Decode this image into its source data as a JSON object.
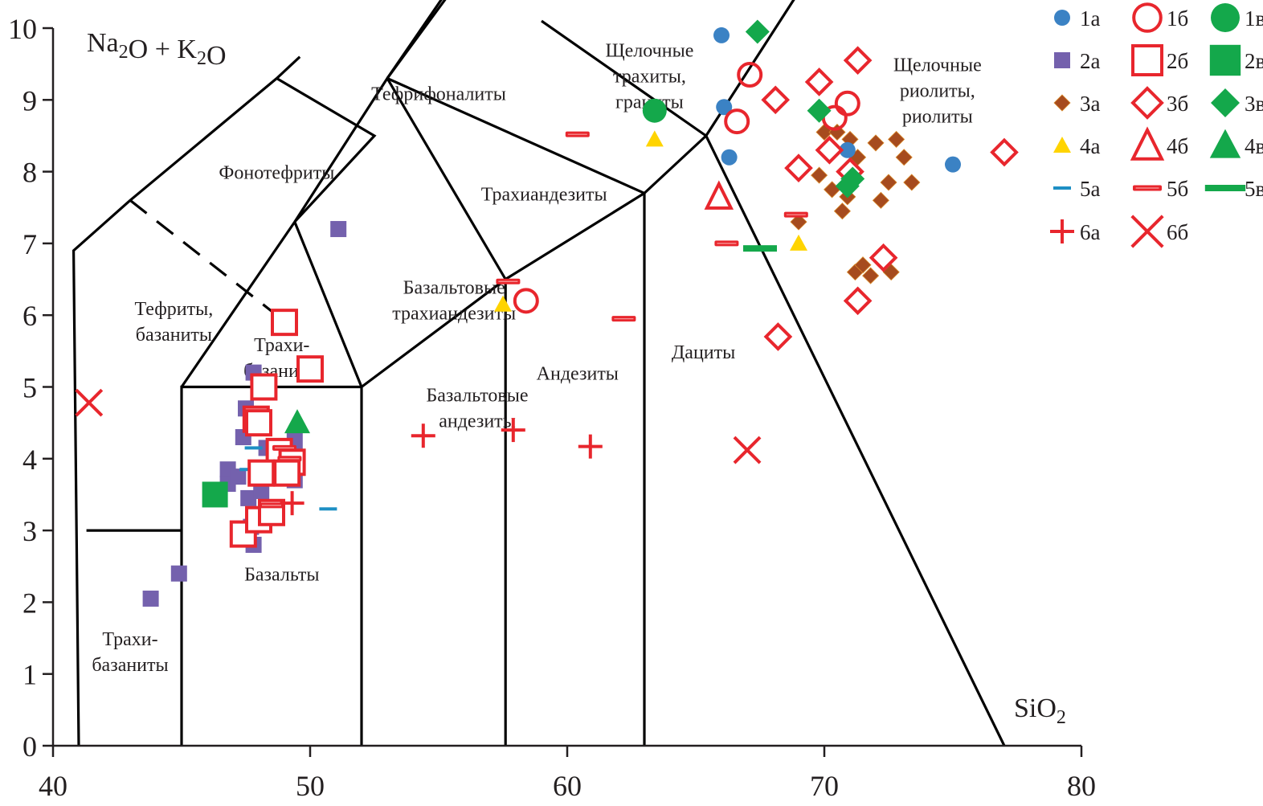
{
  "chart_data": {
    "type": "scatter",
    "title": "",
    "xlabel": "SiO2",
    "ylabel": "Na2O + K2O",
    "xlim": [
      40,
      80
    ],
    "ylim": [
      0,
      10
    ],
    "x_ticks": [
      "40",
      "50",
      "60",
      "70",
      "80"
    ],
    "y_ticks": [
      "0",
      "1",
      "2",
      "3",
      "4",
      "5",
      "6",
      "7",
      "8",
      "9",
      "10"
    ],
    "grid": false,
    "legend_position": "top-right",
    "field_labels": [
      {
        "text": [
          "Тефрифоналиты"
        ],
        "x": 55,
        "y": 9.0
      },
      {
        "text": [
          "Фонотефриты"
        ],
        "x": 48.7,
        "y": 7.9
      },
      {
        "text": [
          "Щелочные",
          "трахиты,",
          "граниты"
        ],
        "x": 63.2,
        "y": 9.6
      },
      {
        "text": [
          "Щелочные",
          "риолиты,",
          "риолиты"
        ],
        "x": 74.4,
        "y": 9.4
      },
      {
        "text": [
          "Трахиандезиты"
        ],
        "x": 59.1,
        "y": 7.6
      },
      {
        "text": [
          "Базальтовые",
          "трахиандезиты"
        ],
        "x": 55.6,
        "y": 6.3
      },
      {
        "text": [
          "Тефриты,",
          "базаниты"
        ],
        "x": 44.7,
        "y": 6.0
      },
      {
        "text": [
          "Трахи-",
          "базаниты"
        ],
        "x": 48.9,
        "y": 5.5
      },
      {
        "text": [
          "Базальтовые",
          "андезиты"
        ],
        "x": 56.5,
        "y": 4.8
      },
      {
        "text": [
          "Андезиты"
        ],
        "x": 60.4,
        "y": 5.1
      },
      {
        "text": [
          "Дациты"
        ],
        "x": 65.3,
        "y": 5.4
      },
      {
        "text": [
          "Базальты"
        ],
        "x": 48.9,
        "y": 2.3
      },
      {
        "text": [
          "Трахи-",
          "базаниты"
        ],
        "x": 43.0,
        "y": 1.4
      }
    ],
    "boundaries": {
      "solid": [
        [
          [
            41.0,
            0
          ],
          [
            40.8,
            6.9
          ],
          [
            43.0,
            7.6
          ],
          [
            48.7,
            9.3
          ],
          [
            49.6,
            9.6
          ]
        ],
        [
          [
            45,
            0
          ],
          [
            45,
            5.0
          ],
          [
            52,
            5.0
          ],
          [
            52,
            0
          ]
        ],
        [
          [
            45,
            5.0
          ],
          [
            49.4,
            7.3
          ],
          [
            53,
            9.3
          ],
          [
            57.6,
            11.7
          ]
        ],
        [
          [
            52,
            5.0
          ],
          [
            57.6,
            6.5
          ],
          [
            63,
            7.7
          ],
          [
            65.4,
            8.5
          ],
          [
            69,
            10.5
          ]
        ],
        [
          [
            57.6,
            0
          ],
          [
            57.6,
            6.5
          ]
        ],
        [
          [
            63,
            0
          ],
          [
            63,
            7.7
          ]
        ],
        [
          [
            49.4,
            7.3
          ],
          [
            52.5,
            8.5
          ],
          [
            48.7,
            9.3
          ]
        ],
        [
          [
            52,
            5.0
          ],
          [
            49.4,
            7.3
          ]
        ],
        [
          [
            57.6,
            6.5
          ],
          [
            53,
            9.3
          ]
        ],
        [
          [
            63,
            7.7
          ],
          [
            53,
            9.3
          ]
        ],
        [
          [
            65.4,
            8.5
          ],
          [
            59,
            10.1
          ]
        ],
        [
          [
            53,
            9.3
          ],
          [
            61.4,
            13.4
          ]
        ],
        [
          [
            65.4,
            8.5
          ],
          [
            77,
            0
          ]
        ],
        [
          [
            41.3,
            3.0
          ],
          [
            45,
            3.0
          ]
        ]
      ],
      "dashed": [
        [
          [
            43.0,
            7.6
          ],
          [
            48.7,
            6.0
          ]
        ]
      ]
    },
    "series": [
      {
        "id": "1а",
        "name": "1а",
        "marker": "circle-filled",
        "color": "#3b82c4",
        "points": [
          [
            66.0,
            9.9
          ],
          [
            66.1,
            8.9
          ],
          [
            66.3,
            8.2
          ],
          [
            70.9,
            8.3
          ],
          [
            75.0,
            8.1
          ]
        ]
      },
      {
        "id": "1б",
        "name": "1б",
        "marker": "circle-open",
        "color": "#e8262d",
        "points": [
          [
            67.1,
            9.35
          ],
          [
            66.6,
            8.7
          ],
          [
            70.9,
            8.95
          ],
          [
            70.4,
            8.75
          ],
          [
            58.4,
            6.2
          ]
        ]
      },
      {
        "id": "1в",
        "name": "1в",
        "marker": "circle-filled-large",
        "color": "#14a84b",
        "points": [
          [
            63.4,
            8.85
          ]
        ]
      },
      {
        "id": "2а",
        "name": "2а",
        "marker": "square-filled",
        "color": "#7461ad",
        "points": [
          [
            51.1,
            7.2
          ],
          [
            44.9,
            2.4
          ],
          [
            43.8,
            2.05
          ],
          [
            47.8,
            5.2
          ],
          [
            47.5,
            4.7
          ],
          [
            48.0,
            4.6
          ],
          [
            49.4,
            4.25
          ],
          [
            47.4,
            4.3
          ],
          [
            46.8,
            3.85
          ],
          [
            46.8,
            3.65
          ],
          [
            47.6,
            3.45
          ],
          [
            48.1,
            3.55
          ],
          [
            49.4,
            3.7
          ],
          [
            47.7,
            3.05
          ],
          [
            47.8,
            2.8
          ],
          [
            47.2,
            3.75
          ],
          [
            48.3,
            4.15
          ]
        ]
      },
      {
        "id": "2б",
        "name": "2б",
        "marker": "square-open",
        "color": "#e8262d",
        "points": [
          [
            49.0,
            5.9
          ],
          [
            50.0,
            5.25
          ],
          [
            48.2,
            5.0
          ],
          [
            47.9,
            4.55
          ],
          [
            48.0,
            4.5
          ],
          [
            48.8,
            4.1
          ],
          [
            49.3,
            3.95
          ],
          [
            48.1,
            3.8
          ],
          [
            49.1,
            3.8
          ],
          [
            47.4,
            2.95
          ],
          [
            48.0,
            3.15
          ],
          [
            48.5,
            3.25
          ]
        ]
      },
      {
        "id": "2в",
        "name": "2в",
        "marker": "square-filled-large",
        "color": "#14a84b",
        "points": [
          [
            46.3,
            3.5
          ]
        ]
      },
      {
        "id": "3а",
        "name": "3а",
        "marker": "diamond-filled",
        "color": "#a64b1e",
        "points": [
          [
            70.0,
            8.55
          ],
          [
            70.5,
            8.55
          ],
          [
            71.0,
            8.45
          ],
          [
            72.0,
            8.4
          ],
          [
            72.8,
            8.45
          ],
          [
            71.3,
            8.2
          ],
          [
            73.1,
            8.2
          ],
          [
            69.8,
            7.95
          ],
          [
            70.3,
            7.75
          ],
          [
            70.9,
            7.65
          ],
          [
            70.7,
            7.45
          ],
          [
            72.5,
            7.85
          ],
          [
            73.4,
            7.85
          ],
          [
            72.2,
            7.6
          ],
          [
            69.0,
            7.3
          ],
          [
            71.2,
            6.6
          ],
          [
            71.5,
            6.7
          ],
          [
            71.8,
            6.55
          ],
          [
            72.6,
            6.6
          ]
        ]
      },
      {
        "id": "3б",
        "name": "3б",
        "marker": "diamond-open",
        "color": "#e8262d",
        "points": [
          [
            71.3,
            9.55
          ],
          [
            69.8,
            9.25
          ],
          [
            68.1,
            9.0
          ],
          [
            70.2,
            8.3
          ],
          [
            69.0,
            8.05
          ],
          [
            71.0,
            8.0
          ],
          [
            77.0,
            8.27
          ],
          [
            72.3,
            6.8
          ],
          [
            71.3,
            6.2
          ],
          [
            68.2,
            5.7
          ]
        ]
      },
      {
        "id": "3в",
        "name": "3в",
        "marker": "diamond-filled-large",
        "color": "#14a84b",
        "points": [
          [
            67.4,
            9.95
          ],
          [
            69.8,
            8.85
          ],
          [
            70.9,
            7.8
          ],
          [
            71.1,
            7.9
          ]
        ]
      },
      {
        "id": "4а",
        "name": "4а",
        "marker": "triangle-filled",
        "color": "#ffd400",
        "points": [
          [
            63.4,
            8.45
          ],
          [
            69.0,
            7.0
          ],
          [
            57.5,
            6.15
          ]
        ]
      },
      {
        "id": "4б",
        "name": "4б",
        "marker": "triangle-open",
        "color": "#e8262d",
        "points": [
          [
            65.9,
            7.65
          ]
        ]
      },
      {
        "id": "4в",
        "name": "4в",
        "marker": "triangle-filled-large",
        "color": "#14a84b",
        "points": [
          [
            49.5,
            4.5
          ]
        ]
      },
      {
        "id": "5а",
        "name": "5а",
        "marker": "dash-thin",
        "color": "#1d8fc4",
        "points": [
          [
            47.8,
            4.15
          ],
          [
            47.6,
            3.85
          ],
          [
            50.7,
            3.3
          ],
          [
            48.2,
            4.95
          ]
        ]
      },
      {
        "id": "5б",
        "name": "5б",
        "marker": "dash-open",
        "color": "#e8262d",
        "points": [
          [
            60.4,
            8.52
          ],
          [
            57.7,
            6.47
          ],
          [
            62.2,
            5.95
          ],
          [
            68.9,
            7.4
          ],
          [
            66.2,
            7.0
          ],
          [
            49.0,
            4.15
          ],
          [
            49.2,
            4.0
          ],
          [
            48.5,
            3.35
          ]
        ]
      },
      {
        "id": "5в",
        "name": "5в",
        "marker": "dash-thick",
        "color": "#14a84b",
        "points": [
          [
            67.5,
            6.93
          ]
        ]
      },
      {
        "id": "6а",
        "name": "6а",
        "marker": "plus",
        "color": "#e8262d",
        "points": [
          [
            54.4,
            4.32
          ],
          [
            57.9,
            4.4
          ],
          [
            60.9,
            4.17
          ],
          [
            49.3,
            3.38
          ]
        ]
      },
      {
        "id": "6б",
        "name": "6б",
        "marker": "cross",
        "color": "#e8262d",
        "points": [
          [
            41.4,
            4.78
          ],
          [
            67.0,
            4.12
          ]
        ]
      }
    ],
    "legend": [
      [
        "1а",
        "1б",
        "1в"
      ],
      [
        "2а",
        "2б",
        "2в"
      ],
      [
        "3а",
        "3б",
        "3в"
      ],
      [
        "4а",
        "4б",
        "4в"
      ],
      [
        "5а",
        "5б",
        "5в"
      ],
      [
        "6а",
        "6б"
      ]
    ]
  },
  "labels": {
    "y_axis_title": "Na2O + K2O",
    "x_axis_title": "SiO2"
  }
}
